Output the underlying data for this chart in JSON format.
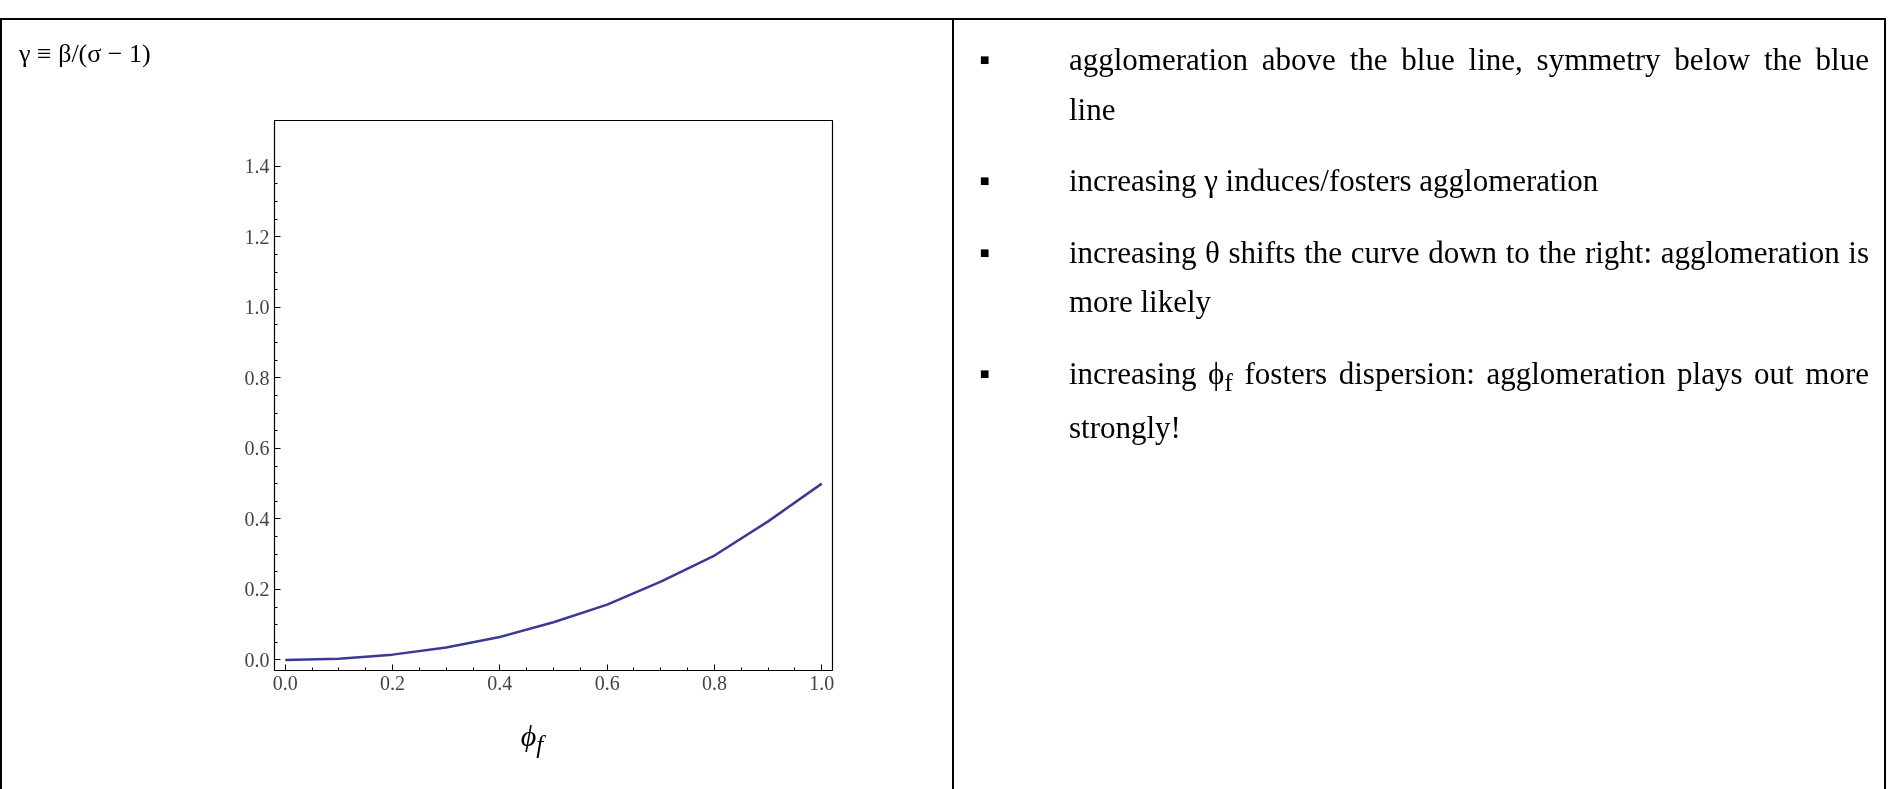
{
  "chart_data": [
    {
      "type": "line",
      "ylabel": "γ ≡ β/(σ − 1)",
      "xlabel": "ϕ$_{f}$",
      "x": [
        0,
        0.1,
        0.2,
        0.3,
        0.4,
        0.5,
        0.6,
        0.7,
        0.8,
        0.9,
        1.0
      ],
      "series": [
        {
          "color": "#3a3a96",
          "values": [
            0,
            0.003,
            0.015,
            0.035,
            0.065,
            0.107,
            0.157,
            0.222,
            0.296,
            0.393,
            0.5
          ]
        }
      ],
      "xlim": [
        -0.02,
        1.02
      ],
      "ylim": [
        -0.03,
        1.53
      ],
      "xticks": [
        {
          "value": 0,
          "label": "0.0"
        },
        0.2,
        0.4,
        0.6,
        0.8,
        {
          "value": 1,
          "label": "1.0"
        }
      ],
      "yticks": [
        {
          "value": 0,
          "label": "0.0"
        },
        0.2,
        0.4,
        0.6,
        0.8,
        {
          "value": 1,
          "label": "1.0"
        },
        1.2,
        1.4
      ],
      "grid": false
    },
    {
      "type": "other",
      "annotations": [
        "▪ agglomeration above the blue line, symmetry below the blue line",
        "▪ increasing γ induces/fosters agglomeration",
        "▪ increasing θ shifts the curve down to the right: agglomeration is more likely",
        "▪ increasing ϕ$_{f}$ fosters dispersion: agglomeration plays out more strongly!"
      ]
    }
  ]
}
